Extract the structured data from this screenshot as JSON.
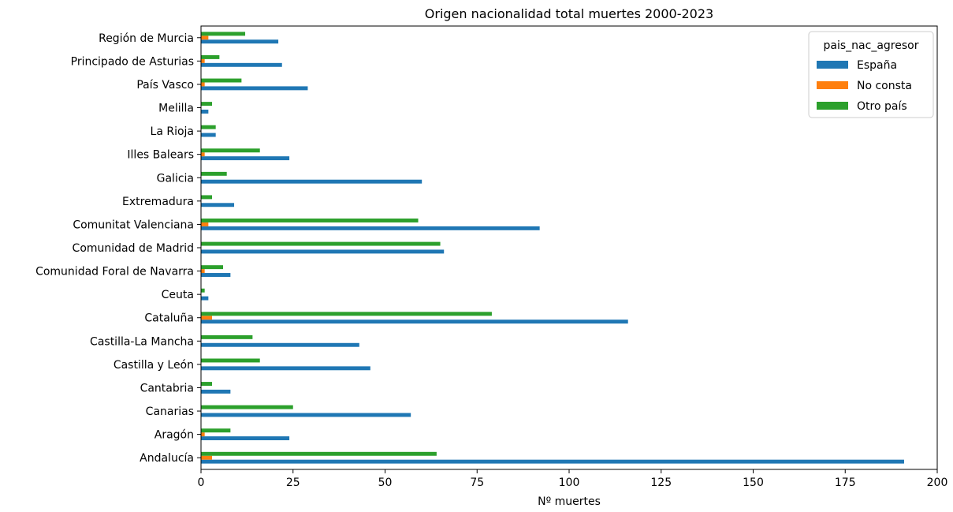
{
  "chart_data": {
    "type": "bar",
    "orientation": "horizontal",
    "title": "Origen nacionalidad total muertes 2000-2023",
    "xlabel": "Nº muertes",
    "ylabel": "",
    "xlim": [
      0,
      200
    ],
    "xticks": [
      0,
      25,
      50,
      75,
      100,
      125,
      150,
      175,
      200
    ],
    "legend": {
      "title": "pais_nac_agresor",
      "placement": "top-right"
    },
    "categories": [
      "Andalucía",
      "Aragón",
      "Canarias",
      "Cantabria",
      "Castilla y León",
      "Castilla-La Mancha",
      "Cataluña",
      "Ceuta",
      "Comunidad Foral de Navarra",
      "Comunidad de Madrid",
      "Comunitat Valenciana",
      "Extremadura",
      "Galicia",
      "Illes Balears",
      "La Rioja",
      "Melilla",
      "País Vasco",
      "Principado de Asturias",
      "Región de Murcia"
    ],
    "series": [
      {
        "name": "España",
        "color": "#1f77b4",
        "values": [
          191,
          24,
          57,
          8,
          46,
          43,
          116,
          2,
          8,
          66,
          92,
          9,
          60,
          24,
          4,
          2,
          29,
          22,
          21
        ]
      },
      {
        "name": "No consta",
        "color": "#ff7f0e",
        "values": [
          3,
          1,
          0,
          0,
          0,
          0,
          3,
          0,
          1,
          0,
          2,
          0,
          0,
          1,
          0,
          0,
          1,
          1,
          2
        ]
      },
      {
        "name": "Otro país",
        "color": "#2ca02c",
        "values": [
          64,
          8,
          25,
          3,
          16,
          14,
          79,
          1,
          6,
          65,
          59,
          3,
          7,
          16,
          4,
          3,
          11,
          5,
          12
        ]
      }
    ]
  }
}
